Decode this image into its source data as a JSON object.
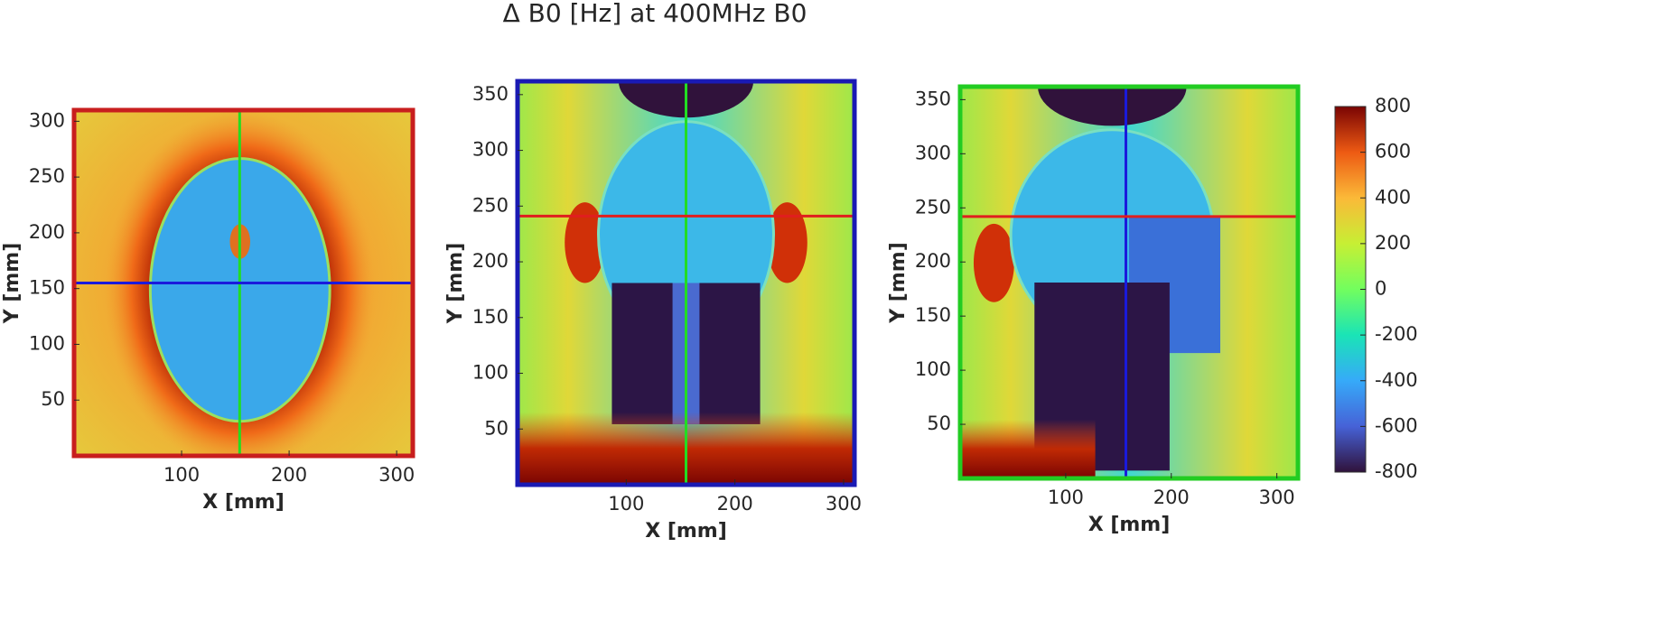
{
  "title": "Δ B0 [Hz] at 400MHz B0",
  "chart_data": [
    {
      "type": "heatmap",
      "xlabel": "X [mm]",
      "ylabel": "Y [mm]",
      "xlim": [
        0,
        315
      ],
      "ylim": [
        0,
        310
      ],
      "xticks": [
        100,
        200,
        300
      ],
      "yticks": [
        50,
        100,
        150,
        200,
        250,
        300
      ],
      "border_color": "#c81e1e",
      "crosshair": {
        "x": 154,
        "x_color": "#22dd22",
        "y": 155,
        "y_color": "#1a1adc"
      }
    },
    {
      "type": "heatmap",
      "xlabel": "X [mm]",
      "ylabel": "Y [mm]",
      "xlim": [
        0,
        310
      ],
      "ylim": [
        0,
        362
      ],
      "xticks": [
        100,
        200,
        300
      ],
      "yticks": [
        50,
        100,
        150,
        200,
        250,
        300,
        350
      ],
      "border_color": "#1a1ab4",
      "crosshair": {
        "x": 155,
        "x_color": "#22dd22",
        "y": 241,
        "y_color": "#e01e1e"
      }
    },
    {
      "type": "heatmap",
      "xlabel": "X [mm]",
      "ylabel": "Y [mm]",
      "xlim": [
        0,
        320
      ],
      "ylim": [
        0,
        362
      ],
      "xticks": [
        100,
        200,
        300
      ],
      "yticks": [
        50,
        100,
        150,
        200,
        250,
        300,
        350
      ],
      "border_color": "#22cc22",
      "crosshair": {
        "x": 157,
        "x_color": "#1a1adc",
        "y": 242,
        "y_color": "#e01e1e"
      }
    }
  ],
  "colorbar": {
    "lim": [
      -800,
      800
    ],
    "ticks": [
      -800,
      -600,
      -400,
      -200,
      0,
      200,
      400,
      600,
      800
    ]
  }
}
